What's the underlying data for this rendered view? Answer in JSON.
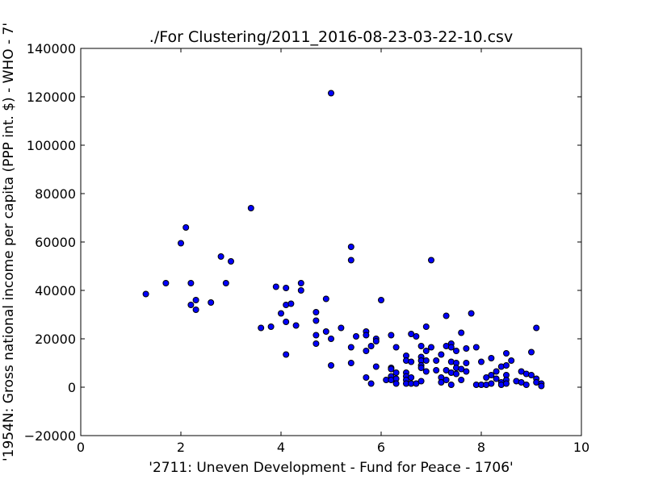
{
  "chart_data": {
    "type": "scatter",
    "title": "./For Clustering/2011_2016-08-23-03-22-10.csv",
    "xlabel": "'2711: Uneven Development - Fund for Peace - 1706'",
    "ylabel": "'1954N: Gross national income per capita (PPP int. $) - WHO - 7'",
    "xlim": [
      0,
      10
    ],
    "ylim": [
      -20000,
      140000
    ],
    "xticks": [
      0,
      2,
      4,
      6,
      8,
      10
    ],
    "yticks": [
      -20000,
      0,
      20000,
      40000,
      60000,
      80000,
      100000,
      120000,
      140000
    ],
    "grid": false,
    "marker_color": "#0000ff",
    "points": [
      [
        1.3,
        38500
      ],
      [
        1.7,
        43000
      ],
      [
        2.0,
        59500
      ],
      [
        2.1,
        66000
      ],
      [
        2.2,
        43000
      ],
      [
        2.2,
        34000
      ],
      [
        2.3,
        36000
      ],
      [
        2.3,
        32000
      ],
      [
        2.6,
        35000
      ],
      [
        2.8,
        54000
      ],
      [
        2.9,
        43000
      ],
      [
        3.0,
        52000
      ],
      [
        3.4,
        74000
      ],
      [
        3.6,
        24500
      ],
      [
        3.8,
        25000
      ],
      [
        3.9,
        41500
      ],
      [
        4.0,
        30500
      ],
      [
        4.1,
        41000
      ],
      [
        4.1,
        34000
      ],
      [
        4.1,
        27000
      ],
      [
        4.1,
        13500
      ],
      [
        4.2,
        34500
      ],
      [
        4.3,
        25500
      ],
      [
        4.4,
        43000
      ],
      [
        4.4,
        40000
      ],
      [
        4.7,
        31000
      ],
      [
        4.7,
        27500
      ],
      [
        4.7,
        21500
      ],
      [
        4.7,
        18000
      ],
      [
        4.9,
        36500
      ],
      [
        4.9,
        23000
      ],
      [
        5.0,
        121500
      ],
      [
        5.0,
        20000
      ],
      [
        5.0,
        9000
      ],
      [
        5.2,
        24500
      ],
      [
        5.4,
        58000
      ],
      [
        5.4,
        52500
      ],
      [
        5.4,
        16500
      ],
      [
        5.4,
        10000
      ],
      [
        5.5,
        21000
      ],
      [
        5.7,
        23000
      ],
      [
        5.7,
        21500
      ],
      [
        5.7,
        15000
      ],
      [
        5.7,
        4000
      ],
      [
        5.8,
        17000
      ],
      [
        5.8,
        1500
      ],
      [
        5.9,
        20000
      ],
      [
        5.9,
        19000
      ],
      [
        5.9,
        8500
      ],
      [
        6.0,
        36000
      ],
      [
        6.1,
        3000
      ],
      [
        6.2,
        21500
      ],
      [
        6.2,
        8000
      ],
      [
        6.2,
        7500
      ],
      [
        6.2,
        4500
      ],
      [
        6.2,
        3000
      ],
      [
        6.3,
        16500
      ],
      [
        6.3,
        6000
      ],
      [
        6.3,
        3500
      ],
      [
        6.3,
        1500
      ],
      [
        6.5,
        13000
      ],
      [
        6.5,
        11000
      ],
      [
        6.5,
        6000
      ],
      [
        6.5,
        4500
      ],
      [
        6.5,
        3000
      ],
      [
        6.5,
        1500
      ],
      [
        6.6,
        22000
      ],
      [
        6.6,
        10500
      ],
      [
        6.6,
        4000
      ],
      [
        6.6,
        1500
      ],
      [
        6.7,
        21000
      ],
      [
        6.7,
        1500
      ],
      [
        6.8,
        17000
      ],
      [
        6.8,
        12500
      ],
      [
        6.8,
        11000
      ],
      [
        6.8,
        9000
      ],
      [
        6.8,
        8000
      ],
      [
        6.8,
        2500
      ],
      [
        6.9,
        25000
      ],
      [
        6.9,
        15000
      ],
      [
        6.9,
        11000
      ],
      [
        6.9,
        6500
      ],
      [
        7.0,
        52500
      ],
      [
        7.0,
        16500
      ],
      [
        7.1,
        11000
      ],
      [
        7.1,
        7000
      ],
      [
        7.2,
        13500
      ],
      [
        7.2,
        4000
      ],
      [
        7.2,
        2000
      ],
      [
        7.3,
        29500
      ],
      [
        7.3,
        17000
      ],
      [
        7.3,
        7000
      ],
      [
        7.3,
        3000
      ],
      [
        7.4,
        18000
      ],
      [
        7.4,
        16500
      ],
      [
        7.4,
        10500
      ],
      [
        7.4,
        6000
      ],
      [
        7.4,
        1000
      ],
      [
        7.5,
        15000
      ],
      [
        7.5,
        10000
      ],
      [
        7.5,
        8000
      ],
      [
        7.5,
        5500
      ],
      [
        7.6,
        22500
      ],
      [
        7.6,
        7500
      ],
      [
        7.6,
        3000
      ],
      [
        7.7,
        16000
      ],
      [
        7.7,
        10000
      ],
      [
        7.7,
        6500
      ],
      [
        7.8,
        30500
      ],
      [
        7.9,
        16500
      ],
      [
        7.9,
        1000
      ],
      [
        8.0,
        10500
      ],
      [
        8.0,
        1000
      ],
      [
        8.1,
        4000
      ],
      [
        8.1,
        1000
      ],
      [
        8.2,
        12000
      ],
      [
        8.2,
        5000
      ],
      [
        8.2,
        1500
      ],
      [
        8.3,
        6500
      ],
      [
        8.3,
        3500
      ],
      [
        8.4,
        8500
      ],
      [
        8.4,
        2000
      ],
      [
        8.4,
        1000
      ],
      [
        8.5,
        14000
      ],
      [
        8.5,
        9000
      ],
      [
        8.5,
        5000
      ],
      [
        8.5,
        3000
      ],
      [
        8.5,
        1500
      ],
      [
        8.6,
        11000
      ],
      [
        8.7,
        2500
      ],
      [
        8.8,
        6500
      ],
      [
        8.8,
        2000
      ],
      [
        8.9,
        5500
      ],
      [
        8.9,
        1000
      ],
      [
        9.0,
        14500
      ],
      [
        9.0,
        5000
      ],
      [
        9.1,
        24500
      ],
      [
        9.1,
        3500
      ],
      [
        9.1,
        2000
      ],
      [
        9.2,
        1500
      ],
      [
        9.2,
        500
      ]
    ]
  }
}
